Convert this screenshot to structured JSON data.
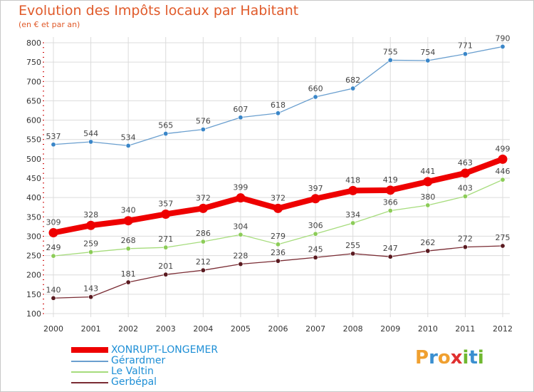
{
  "header": {
    "title": "Evolution des Impôts locaux par Habitant",
    "subtitle": "(en € et par an)"
  },
  "brand": {
    "letters": [
      "P",
      "r",
      "o",
      "x",
      "i",
      "t",
      "i"
    ]
  },
  "colors": {
    "title": "#e05a2a",
    "grid": "#dcdcdc",
    "axis_ticks": "#cc0000",
    "legend_text": "#1e8fd6",
    "brand_letters": [
      "#f0a030",
      "#3a8fd0",
      "#f0a030",
      "#e03030",
      "#70b830",
      "#3a8fd0",
      "#70b830"
    ]
  },
  "chart_data": {
    "type": "line",
    "title": "Evolution des Impôts locaux par Habitant",
    "subtitle": "(en € et par an)",
    "x": [
      "2000",
      "2001",
      "2002",
      "2003",
      "2004",
      "2005",
      "2006",
      "2007",
      "2008",
      "2009",
      "2010",
      "2011",
      "2012"
    ],
    "ylim": [
      100,
      800
    ],
    "yticks": [
      100,
      150,
      200,
      250,
      300,
      350,
      400,
      450,
      500,
      550,
      600,
      650,
      700,
      750,
      800
    ],
    "grid": true,
    "legend_position": "bottom-left",
    "series": [
      {
        "name": "XONRUPT-LONGEMER",
        "color": "#ee0000",
        "emphasis": true,
        "values": [
          309,
          328,
          340,
          357,
          372,
          399,
          372,
          397,
          418,
          419,
          441,
          463,
          499
        ]
      },
      {
        "name": "Gérardmer",
        "color": "#6a9fcf",
        "point_color": "#3a86c8",
        "emphasis": false,
        "values": [
          537,
          544,
          534,
          565,
          576,
          607,
          618,
          660,
          682,
          755,
          754,
          771,
          790
        ]
      },
      {
        "name": "Le Valtin",
        "color": "#a6dc7c",
        "point_color": "#8ccc58",
        "emphasis": false,
        "values": [
          249,
          259,
          268,
          271,
          286,
          304,
          279,
          306,
          334,
          366,
          380,
          403,
          446
        ]
      },
      {
        "name": "Gerbépal",
        "color": "#7a2c34",
        "point_color": "#5a1a20",
        "emphasis": false,
        "values": [
          140,
          143,
          181,
          201,
          212,
          228,
          236,
          245,
          255,
          247,
          262,
          272,
          275
        ]
      }
    ]
  }
}
